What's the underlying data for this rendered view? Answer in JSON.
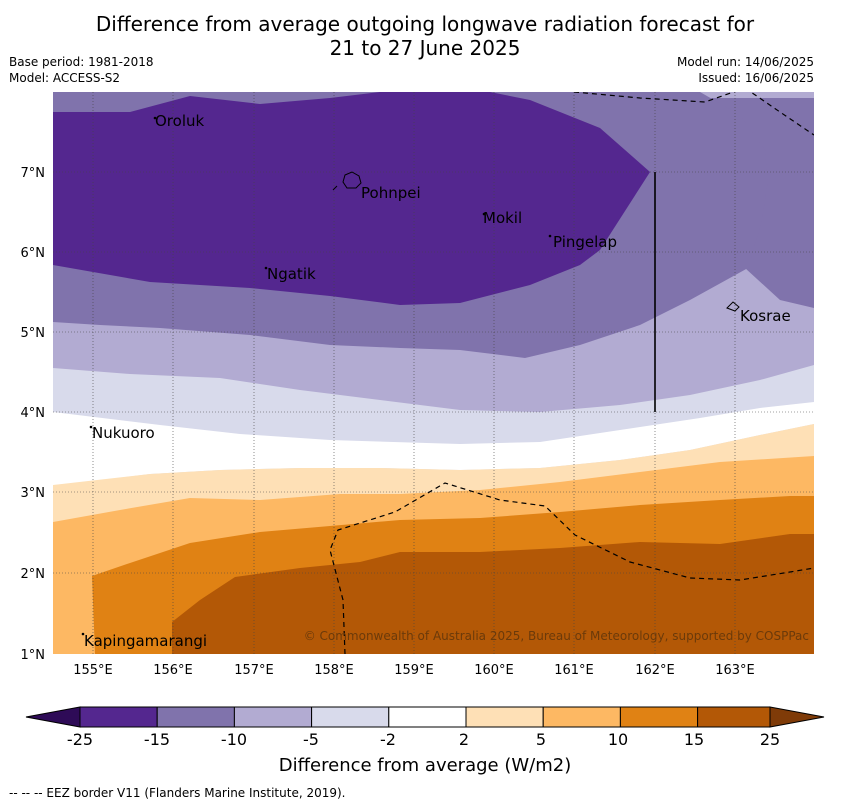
{
  "title_line1": "Difference from average outgoing longwave radiation forecast for",
  "title_line2": "21 to 27 June 2025",
  "meta": {
    "base_period": "Base period: 1981-2018",
    "model": "Model: ACCESS-S2",
    "model_run": "Model run: 14/06/2025",
    "issued": "Issued: 16/06/2025"
  },
  "lon_ticks": [
    "155°E",
    "156°E",
    "157°E",
    "158°E",
    "159°E",
    "160°E",
    "161°E",
    "162°E",
    "163°E"
  ],
  "lat_ticks": [
    "7°N",
    "6°N",
    "5°N",
    "4°N",
    "3°N",
    "2°N",
    "1°N"
  ],
  "places": {
    "oroluk": "Oroluk",
    "pohnpei": "Pohnpei",
    "mokil": "Mokil",
    "pingelap": "Pingelap",
    "ngatik": "Ngatik",
    "kosrae": "Kosrae",
    "nukuoro": "Nukuoro",
    "kapingamarangi": "Kapingamarangi"
  },
  "copyright": "© Commonwealth of Australia 2025, Bureau of Meteorology, supported by COSPPac",
  "colorbar": {
    "label": "Difference from average (W/m2)",
    "ticks": [
      "-25",
      "-15",
      "-10",
      "-5",
      "-2",
      "2",
      "5",
      "10",
      "15",
      "25"
    ],
    "colors": [
      "#2e0b57",
      "#54278f",
      "#8073ac",
      "#b2abd2",
      "#d8daeb",
      "#ffffff",
      "#fee0b6",
      "#fdb863",
      "#e08214",
      "#b35806",
      "#7f3b08"
    ]
  },
  "footer": "--  --  -- EEZ border V11 (Flanders Marine Institute, 2019)."
}
